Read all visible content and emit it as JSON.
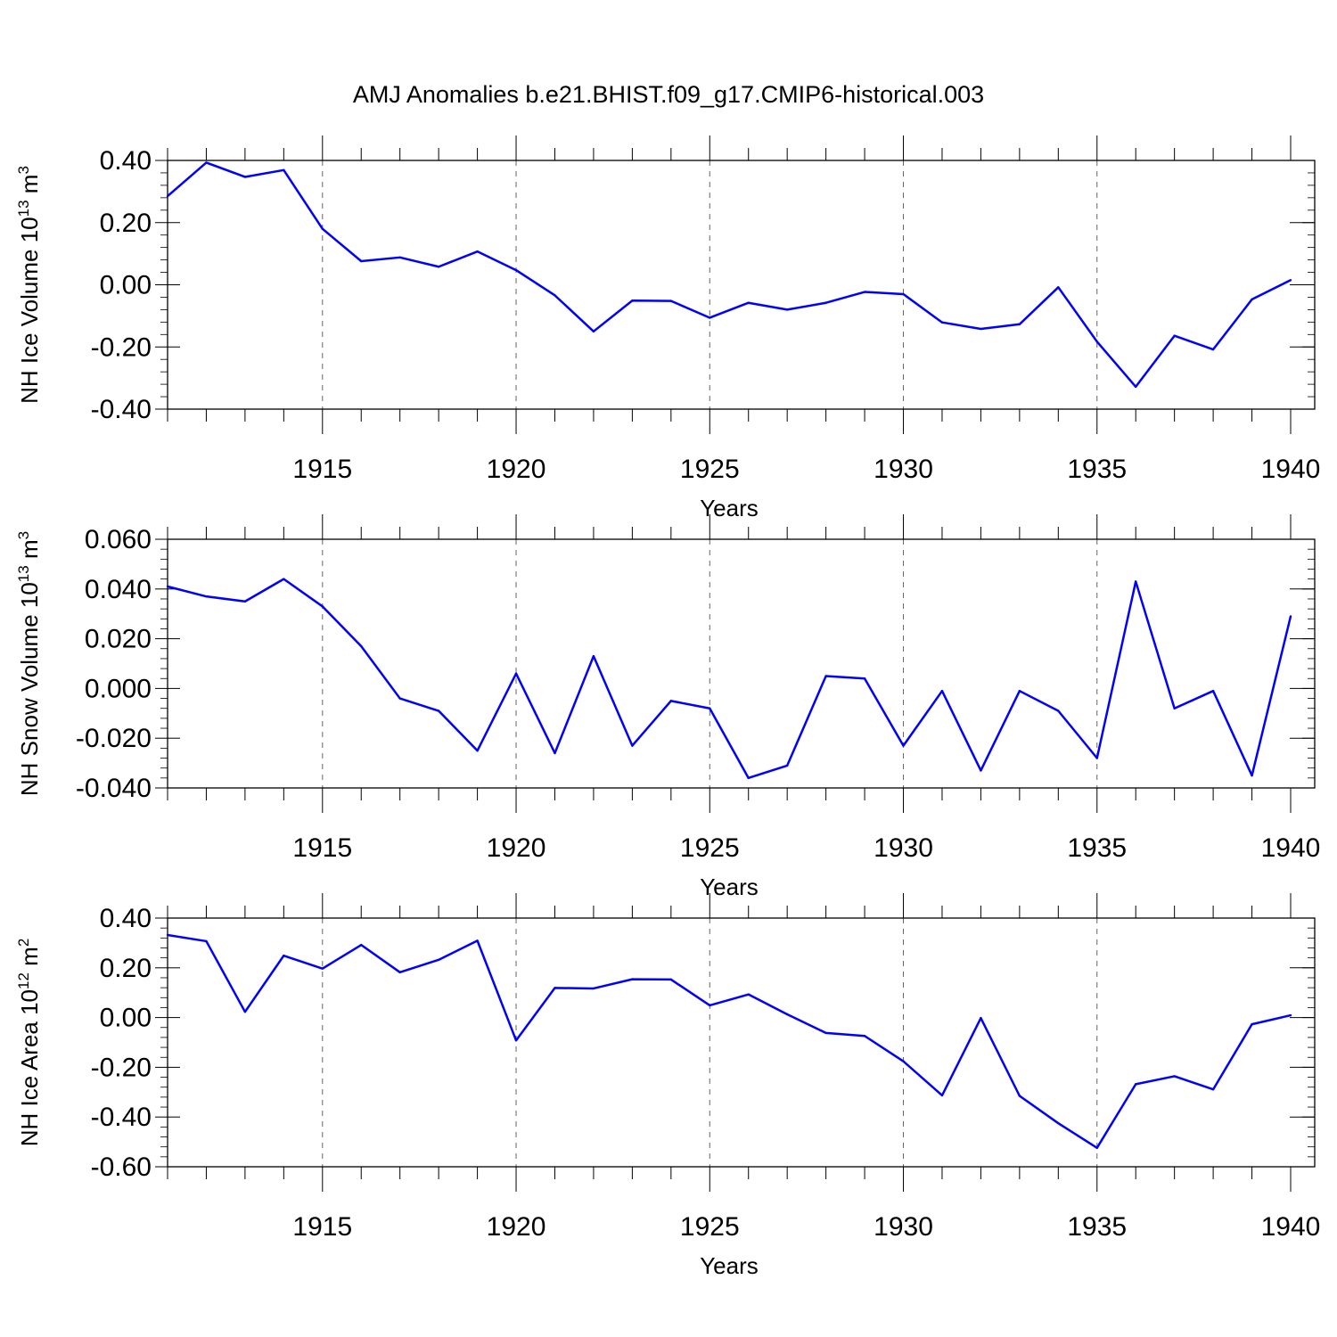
{
  "title": "AMJ Anomalies b.e21.BHIST.f09_g17.CMIP6-historical.003",
  "chart_data": [
    {
      "type": "line",
      "ylabel": "NH Ice Volume 10",
      "ylabel_exp": "13",
      "ylabel_unit": " m",
      "ylabel_unit_exp": "3",
      "xlabel": "Years",
      "xlim": [
        1911,
        1940
      ],
      "ylim": [
        -0.4,
        0.4
      ],
      "yticks": [
        0.4,
        0.2,
        0.0,
        -0.2,
        -0.4
      ],
      "ytick_labels": [
        "0.40",
        "0.20",
        "0.00",
        "-0.20",
        "-0.40"
      ],
      "xticks": [
        1915,
        1920,
        1925,
        1930,
        1935,
        1940
      ],
      "xtick_labels": [
        "1915",
        "1920",
        "1925",
        "1930",
        "1935",
        "1940"
      ],
      "grid": "vertical dashed at major years",
      "line_color": "#0000ff",
      "x": [
        1911,
        1912,
        1913,
        1914,
        1915,
        1916,
        1917,
        1918,
        1919,
        1920,
        1921,
        1922,
        1923,
        1924,
        1925,
        1926,
        1927,
        1928,
        1929,
        1930,
        1931,
        1932,
        1933,
        1934,
        1935,
        1936,
        1937,
        1938,
        1939,
        1940
      ],
      "values": [
        0.285,
        0.393,
        0.347,
        0.369,
        0.18,
        0.076,
        0.088,
        0.058,
        0.107,
        0.047,
        -0.034,
        -0.15,
        -0.051,
        -0.052,
        -0.106,
        -0.058,
        -0.08,
        -0.058,
        -0.023,
        -0.03,
        -0.121,
        -0.142,
        -0.127,
        -0.008,
        -0.183,
        -0.328,
        -0.164,
        -0.208,
        -0.047,
        0.015
      ]
    },
    {
      "type": "line",
      "ylabel": "NH Snow Volume 10",
      "ylabel_exp": "13",
      "ylabel_unit": " m",
      "ylabel_unit_exp": "3",
      "xlabel": "Years",
      "xlim": [
        1911,
        1940
      ],
      "ylim": [
        -0.04,
        0.06
      ],
      "yticks": [
        0.06,
        0.04,
        0.02,
        0.0,
        -0.02,
        -0.04
      ],
      "ytick_labels": [
        "0.060",
        "0.040",
        "0.020",
        "0.000",
        "-0.020",
        "-0.040"
      ],
      "xticks": [
        1915,
        1920,
        1925,
        1930,
        1935,
        1940
      ],
      "xtick_labels": [
        "1915",
        "1920",
        "1925",
        "1930",
        "1935",
        "1940"
      ],
      "grid": "vertical dashed at major years",
      "line_color": "#0000ff",
      "x": [
        1911,
        1912,
        1913,
        1914,
        1915,
        1916,
        1917,
        1918,
        1919,
        1920,
        1921,
        1922,
        1923,
        1924,
        1925,
        1926,
        1927,
        1928,
        1929,
        1930,
        1931,
        1932,
        1933,
        1934,
        1935,
        1936,
        1937,
        1938,
        1939,
        1940
      ],
      "values": [
        0.041,
        0.037,
        0.035,
        0.044,
        0.033,
        0.017,
        -0.004,
        -0.009,
        -0.025,
        0.006,
        -0.026,
        0.013,
        -0.023,
        -0.005,
        -0.008,
        -0.036,
        -0.031,
        0.005,
        0.004,
        -0.023,
        -0.001,
        -0.033,
        -0.001,
        -0.009,
        -0.028,
        0.043,
        -0.008,
        -0.001,
        -0.035,
        0.029
      ]
    },
    {
      "type": "line",
      "ylabel": "NH Ice Area 10",
      "ylabel_exp": "12",
      "ylabel_unit": " m",
      "ylabel_unit_exp": "2",
      "xlabel": "Years",
      "xlim": [
        1911,
        1940
      ],
      "ylim": [
        -0.6,
        0.4
      ],
      "yticks": [
        0.4,
        0.2,
        0.0,
        -0.2,
        -0.4,
        -0.6
      ],
      "ytick_labels": [
        "0.40",
        "0.20",
        "0.00",
        "-0.20",
        "-0.40",
        "-0.60"
      ],
      "xticks": [
        1915,
        1920,
        1925,
        1930,
        1935,
        1940
      ],
      "xtick_labels": [
        "1915",
        "1920",
        "1925",
        "1930",
        "1935",
        "1940"
      ],
      "grid": "vertical dashed at major years",
      "line_color": "#0000ff",
      "x": [
        1911,
        1912,
        1913,
        1914,
        1915,
        1916,
        1917,
        1918,
        1919,
        1920,
        1921,
        1922,
        1923,
        1924,
        1925,
        1926,
        1927,
        1928,
        1929,
        1930,
        1931,
        1932,
        1933,
        1934,
        1935,
        1936,
        1937,
        1938,
        1939,
        1940
      ],
      "values": [
        0.332,
        0.307,
        0.023,
        0.249,
        0.197,
        0.292,
        0.182,
        0.232,
        0.309,
        -0.092,
        0.119,
        0.117,
        0.154,
        0.153,
        0.049,
        0.093,
        0.013,
        -0.062,
        -0.074,
        -0.176,
        -0.313,
        -0.002,
        -0.315,
        -0.425,
        -0.524,
        -0.268,
        -0.236,
        -0.289,
        -0.027,
        0.009
      ]
    }
  ]
}
